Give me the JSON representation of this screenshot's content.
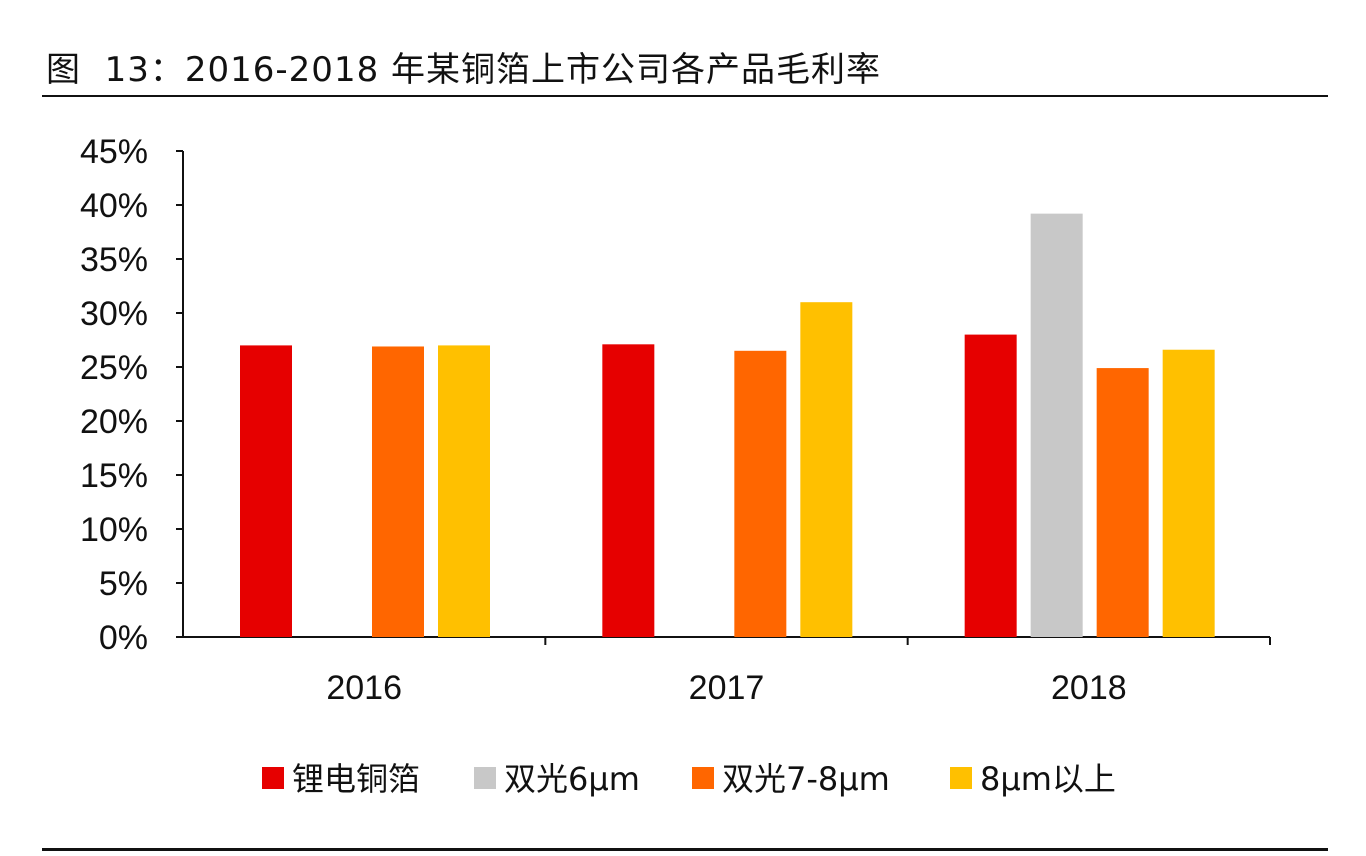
{
  "title": "图  13：2016-2018 年某铜箔上市公司各产品毛利率",
  "chart_data": {
    "type": "bar",
    "title": "图  13：2016-2018 年某铜箔上市公司各产品毛利率",
    "categories": [
      "2016",
      "2017",
      "2018"
    ],
    "series": [
      {
        "name": "锂电铜箔",
        "color": "#E60000",
        "values": [
          27.0,
          27.1,
          28.0
        ]
      },
      {
        "name": "双光6μm",
        "color": "#C8C8C8",
        "values": [
          null,
          null,
          39.2
        ]
      },
      {
        "name": "双光7-8μm",
        "color": "#FF6600",
        "values": [
          26.9,
          26.5,
          24.9
        ]
      },
      {
        "name": "8μm以上",
        "color": "#FFC000",
        "values": [
          27.0,
          31.0,
          26.6
        ]
      }
    ],
    "yticks": [
      "0%",
      "5%",
      "10%",
      "15%",
      "20%",
      "25%",
      "30%",
      "35%",
      "40%",
      "45%"
    ],
    "ylim": [
      0,
      45
    ],
    "xlabel": "",
    "ylabel": "",
    "grid": false,
    "legend_position": "bottom"
  }
}
